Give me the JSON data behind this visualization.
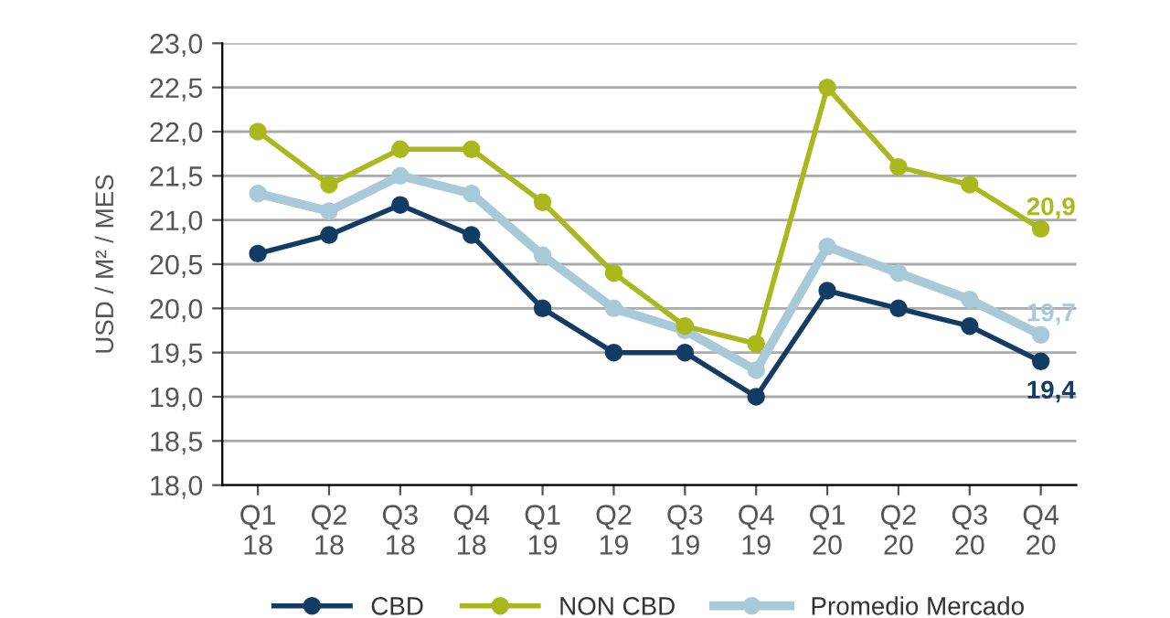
{
  "chart_data": {
    "type": "line",
    "ylabel": "USD / M² / MES",
    "categories": [
      "Q1\n18",
      "Q2\n18",
      "Q3\n18",
      "Q4\n18",
      "Q1\n19",
      "Q2\n19",
      "Q3\n19",
      "Q4\n19",
      "Q1\n20",
      "Q2\n20",
      "Q3\n20",
      "Q4\n20"
    ],
    "series": [
      {
        "name": "CBD",
        "color": "#133c64",
        "values": [
          20.62,
          20.83,
          21.17,
          20.83,
          20.0,
          19.5,
          19.5,
          19.0,
          20.2,
          20.0,
          19.8,
          19.4
        ],
        "value_labels": [
          null,
          null,
          null,
          null,
          null,
          null,
          null,
          null,
          null,
          null,
          null,
          "19,4"
        ]
      },
      {
        "name": "NON CBD",
        "color": "#a9b81c",
        "values": [
          22.0,
          21.4,
          21.8,
          21.8,
          21.2,
          20.4,
          19.8,
          19.6,
          22.5,
          21.6,
          21.4,
          20.9
        ],
        "value_labels": [
          null,
          null,
          null,
          null,
          null,
          null,
          null,
          null,
          null,
          null,
          null,
          "20,9"
        ]
      },
      {
        "name": "Promedio Mercado",
        "color": "#a8cad8",
        "values": [
          21.3,
          21.1,
          21.5,
          21.3,
          20.6,
          20.0,
          19.75,
          19.3,
          20.7,
          20.4,
          20.1,
          19.7
        ],
        "value_labels": [
          null,
          null,
          null,
          null,
          null,
          null,
          null,
          null,
          null,
          null,
          null,
          "19,7"
        ]
      }
    ],
    "ylim": [
      18.0,
      23.0
    ],
    "yticks": [
      {
        "value": 18.0,
        "label": "18,0"
      },
      {
        "value": 18.5,
        "label": "18,5"
      },
      {
        "value": 19.0,
        "label": "19,0"
      },
      {
        "value": 19.5,
        "label": "19,5"
      },
      {
        "value": 20.0,
        "label": "20,0"
      },
      {
        "value": 20.5,
        "label": "20,5"
      },
      {
        "value": 21.0,
        "label": "21,0"
      },
      {
        "value": 21.5,
        "label": "21,5"
      },
      {
        "value": 22.0,
        "label": "22,0"
      },
      {
        "value": 22.5,
        "label": "22,5"
      },
      {
        "value": 23.0,
        "label": "23,0"
      }
    ],
    "grid": "y",
    "legend": "bottom",
    "marker": "circle",
    "line_style": "solid"
  }
}
